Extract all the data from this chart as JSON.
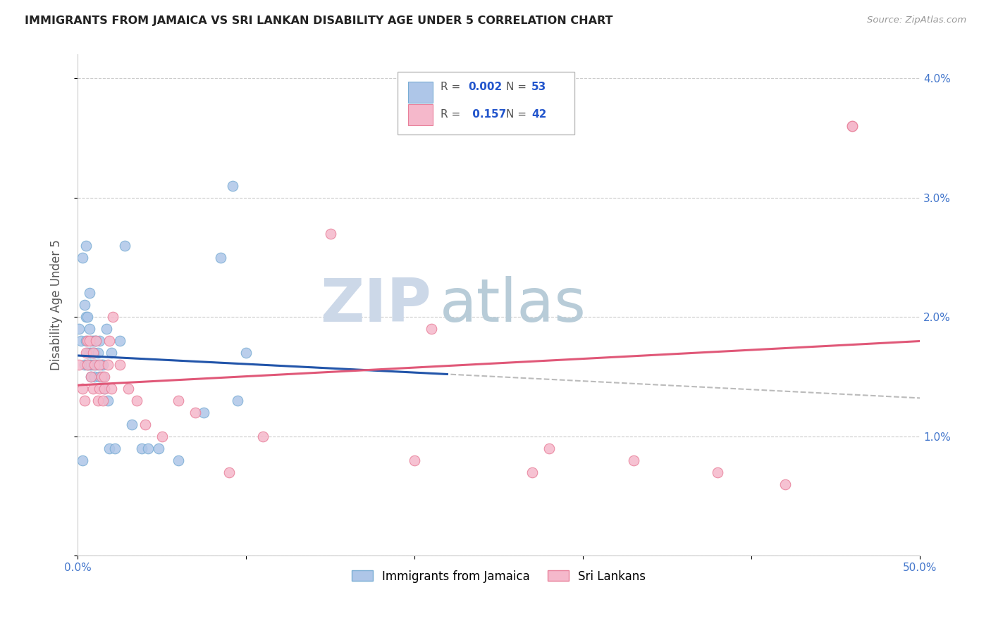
{
  "title": "IMMIGRANTS FROM JAMAICA VS SRI LANKAN DISABILITY AGE UNDER 5 CORRELATION CHART",
  "source": "Source: ZipAtlas.com",
  "ylabel": "Disability Age Under 5",
  "xlim": [
    0.0,
    0.5
  ],
  "ylim": [
    0.0,
    0.042
  ],
  "jamaica_color": "#aec6e8",
  "jamaica_edge": "#7aadd4",
  "srilanka_color": "#f5b8cb",
  "srilanka_edge": "#e8809a",
  "blue_line_color": "#2255aa",
  "pink_line_color": "#e05878",
  "dashed_line_color": "#bbbbbb",
  "watermark_zip_color": "#ccd8e8",
  "watermark_atlas_color": "#b8ccd8",
  "background_color": "#ffffff",
  "jamaica_x": [
    0.001,
    0.002,
    0.003,
    0.003,
    0.004,
    0.004,
    0.005,
    0.005,
    0.005,
    0.006,
    0.006,
    0.006,
    0.007,
    0.007,
    0.007,
    0.007,
    0.008,
    0.008,
    0.008,
    0.008,
    0.009,
    0.009,
    0.009,
    0.01,
    0.01,
    0.01,
    0.011,
    0.011,
    0.012,
    0.012,
    0.013,
    0.013,
    0.014,
    0.015,
    0.015,
    0.016,
    0.017,
    0.018,
    0.019,
    0.02,
    0.022,
    0.025,
    0.028,
    0.032,
    0.038,
    0.042,
    0.048,
    0.06,
    0.075,
    0.085,
    0.092,
    0.095,
    0.1
  ],
  "jamaica_y": [
    0.019,
    0.018,
    0.008,
    0.025,
    0.016,
    0.021,
    0.018,
    0.02,
    0.026,
    0.02,
    0.017,
    0.016,
    0.019,
    0.017,
    0.016,
    0.022,
    0.018,
    0.017,
    0.016,
    0.015,
    0.018,
    0.017,
    0.016,
    0.018,
    0.017,
    0.015,
    0.018,
    0.016,
    0.017,
    0.016,
    0.018,
    0.015,
    0.016,
    0.016,
    0.015,
    0.014,
    0.019,
    0.013,
    0.009,
    0.017,
    0.009,
    0.018,
    0.026,
    0.011,
    0.009,
    0.009,
    0.009,
    0.008,
    0.012,
    0.025,
    0.031,
    0.013,
    0.017
  ],
  "srilanka_x": [
    0.001,
    0.003,
    0.004,
    0.005,
    0.006,
    0.006,
    0.007,
    0.008,
    0.009,
    0.009,
    0.01,
    0.011,
    0.012,
    0.013,
    0.013,
    0.014,
    0.015,
    0.016,
    0.016,
    0.018,
    0.019,
    0.02,
    0.021,
    0.025,
    0.03,
    0.035,
    0.04,
    0.05,
    0.06,
    0.07,
    0.09,
    0.11,
    0.15,
    0.2,
    0.27,
    0.38,
    0.42,
    0.46,
    0.21,
    0.28,
    0.33,
    0.46
  ],
  "srilanka_y": [
    0.016,
    0.014,
    0.013,
    0.017,
    0.016,
    0.018,
    0.018,
    0.015,
    0.014,
    0.017,
    0.016,
    0.018,
    0.013,
    0.014,
    0.016,
    0.015,
    0.013,
    0.014,
    0.015,
    0.016,
    0.018,
    0.014,
    0.02,
    0.016,
    0.014,
    0.013,
    0.011,
    0.01,
    0.013,
    0.012,
    0.007,
    0.01,
    0.027,
    0.008,
    0.007,
    0.007,
    0.006,
    0.036,
    0.019,
    0.009,
    0.008,
    0.036
  ]
}
